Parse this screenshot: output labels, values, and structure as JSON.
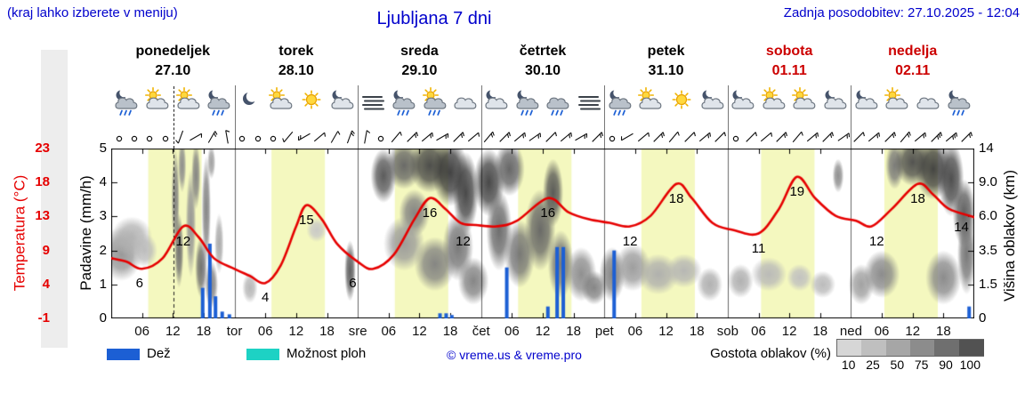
{
  "header": {
    "hint": "(kraj lahko izberete v meniju)",
    "title": "Ljubljana 7 dni",
    "updated": "Zadnja posodobitev: 27.10.2025 - 12:04"
  },
  "axes": {
    "temp_label": "Temperatura (°C)",
    "precip_label": "Padavine (mm/h)",
    "cloud_label": "Višina oblakov (km)",
    "temp_ticks": [
      "23",
      "18",
      "13",
      "9",
      "4",
      "-1"
    ],
    "precip_ticks": [
      "5",
      "4",
      "3",
      "2",
      "1",
      "0"
    ],
    "cloud_ticks": [
      "14",
      "9.0",
      "6.0",
      "3.5",
      "1.5",
      "0"
    ],
    "time_ticks": [
      "06",
      "12",
      "18"
    ],
    "day_boundary_labels": [
      "tor",
      "sre",
      "čet",
      "pet",
      "sob",
      "ned"
    ]
  },
  "days": [
    {
      "name": "ponedeljek",
      "date": "27.10",
      "weekend": false
    },
    {
      "name": "torek",
      "date": "28.10",
      "weekend": false
    },
    {
      "name": "sreda",
      "date": "29.10",
      "weekend": false
    },
    {
      "name": "četrtek",
      "date": "30.10",
      "weekend": false
    },
    {
      "name": "petek",
      "date": "31.10",
      "weekend": false
    },
    {
      "name": "sobota",
      "date": "01.11",
      "weekend": true
    },
    {
      "name": "nedelja",
      "date": "02.11",
      "weekend": true
    }
  ],
  "legend": {
    "rain": "Dež",
    "showers": "Možnost ploh",
    "copyright": "© vreme.us & vreme.pro",
    "cloud_density": "Gostota oblakov (%)",
    "density_steps": [
      "10",
      "25",
      "50",
      "75",
      "90",
      "100"
    ]
  },
  "colors": {
    "blue_text": "#0000cc",
    "weekend_red": "#cc0000",
    "rain": "#1c5fd4",
    "showers": "#1dd2c4",
    "temp_line": "#e60000",
    "day_band": "#f4f8bf",
    "density_scale": [
      "#d6d6d6",
      "#bfbfbf",
      "#a6a6a6",
      "#8c8c8c",
      "#6f6f6f",
      "#525252"
    ]
  },
  "chart_data": {
    "type": "line",
    "title": "Ljubljana 7 dni meteogram",
    "x_unit": "hours from 2025-10-27 00:00, 7 days total",
    "x_range": [
      0,
      168
    ],
    "precip_axis_range_mm_h": [
      0,
      5
    ],
    "temp_axis_ticks_c": [
      23,
      18,
      13,
      9,
      4,
      -1
    ],
    "cloud_height_ticks_km": [
      14,
      9.0,
      6.0,
      3.5,
      1.5,
      0
    ],
    "now_hour": 12.07,
    "day_bands_h": [
      [
        7.2,
        17.6
      ],
      [
        31.2,
        41.6
      ],
      [
        55.2,
        65.6
      ],
      [
        79.2,
        89.6
      ],
      [
        103.2,
        113.6
      ],
      [
        126.5,
        136.9
      ],
      [
        150.5,
        160.9
      ]
    ],
    "temperature_c": {
      "points": [
        [
          0,
          7.5
        ],
        [
          3,
          7
        ],
        [
          6,
          6
        ],
        [
          10,
          7.5
        ],
        [
          14,
          12
        ],
        [
          17,
          10.5
        ],
        [
          20,
          7.5
        ],
        [
          24,
          6
        ],
        [
          27,
          5
        ],
        [
          30,
          4
        ],
        [
          33,
          6.5
        ],
        [
          36,
          12
        ],
        [
          38,
          15
        ],
        [
          41,
          13
        ],
        [
          44,
          9.5
        ],
        [
          48,
          7
        ],
        [
          51,
          6
        ],
        [
          55,
          8
        ],
        [
          59,
          13
        ],
        [
          62,
          16
        ],
        [
          65,
          14.5
        ],
        [
          68,
          12.5
        ],
        [
          71,
          12.2
        ],
        [
          75,
          12
        ],
        [
          79,
          12.8
        ],
        [
          85,
          16
        ],
        [
          89,
          14
        ],
        [
          93,
          13
        ],
        [
          97,
          12.5
        ],
        [
          101,
          12
        ],
        [
          105,
          13.5
        ],
        [
          110,
          18
        ],
        [
          113,
          16
        ],
        [
          117,
          12.5
        ],
        [
          121,
          11.5
        ],
        [
          126,
          11
        ],
        [
          130,
          14.5
        ],
        [
          133.5,
          19
        ],
        [
          137,
          16
        ],
        [
          141,
          13.5
        ],
        [
          145,
          12.8
        ],
        [
          148,
          12
        ],
        [
          152,
          14.5
        ],
        [
          157,
          18
        ],
        [
          160,
          16.5
        ],
        [
          163,
          14.5
        ],
        [
          168,
          13.3
        ]
      ],
      "labels": [
        [
          5.5,
          6
        ],
        [
          14,
          12
        ],
        [
          30,
          4
        ],
        [
          38,
          15
        ],
        [
          47,
          6
        ],
        [
          62,
          16
        ],
        [
          68.5,
          12
        ],
        [
          85,
          16
        ],
        [
          101,
          12
        ],
        [
          110,
          18
        ],
        [
          126,
          11
        ],
        [
          133.5,
          19
        ],
        [
          149,
          12
        ],
        [
          157,
          18
        ],
        [
          165.5,
          14
        ]
      ]
    },
    "precip_mm_h": [
      [
        17.8,
        0.9
      ],
      [
        19.2,
        2.2
      ],
      [
        20.3,
        0.65
      ],
      [
        21.6,
        0.2
      ],
      [
        23,
        0.12
      ],
      [
        64,
        0.15
      ],
      [
        65.2,
        0.15
      ],
      [
        66.3,
        0.1
      ],
      [
        77,
        1.5
      ],
      [
        85,
        0.35
      ],
      [
        86.8,
        2.1
      ],
      [
        88,
        2.1
      ],
      [
        97.9,
        2.0
      ],
      [
        167,
        0.35
      ]
    ],
    "clouds": [
      [
        2,
        1.9,
        4,
        0.8,
        45
      ],
      [
        4,
        2.4,
        4,
        0.6,
        30
      ],
      [
        6.5,
        2.0,
        2.5,
        0.5,
        25
      ],
      [
        12.5,
        3.5,
        0.8,
        1.5,
        55
      ],
      [
        13.2,
        2.0,
        0.9,
        1.1,
        65
      ],
      [
        13.8,
        4.5,
        0.8,
        0.8,
        50
      ],
      [
        15.5,
        2.8,
        1.0,
        1.6,
        45
      ],
      [
        16.5,
        4.2,
        0.9,
        1.0,
        55
      ],
      [
        17.5,
        1.5,
        1.2,
        0.9,
        65
      ],
      [
        18.5,
        3.2,
        0.9,
        1.6,
        55
      ],
      [
        19.5,
        4.6,
        0.8,
        0.5,
        40
      ],
      [
        19.5,
        1.0,
        1.3,
        0.7,
        55
      ],
      [
        21,
        2.2,
        0.9,
        0.9,
        35
      ],
      [
        27,
        0.9,
        1.5,
        0.45,
        28
      ],
      [
        40,
        2.6,
        2,
        0.35,
        18
      ],
      [
        46.5,
        1.4,
        1.1,
        0.9,
        75
      ],
      [
        53,
        4.2,
        2.5,
        0.8,
        78
      ],
      [
        57,
        4.5,
        3.5,
        0.7,
        70
      ],
      [
        62,
        4.5,
        4,
        0.8,
        85
      ],
      [
        66,
        4.3,
        3.5,
        1.0,
        92
      ],
      [
        69,
        3.7,
        2.5,
        1.2,
        88
      ],
      [
        59,
        3.1,
        3,
        0.7,
        55
      ],
      [
        57,
        2.2,
        4,
        0.8,
        42
      ],
      [
        63,
        1.6,
        4,
        0.8,
        55
      ],
      [
        67.5,
        2.1,
        3,
        1.0,
        62
      ],
      [
        70.5,
        1.1,
        3,
        0.7,
        55
      ],
      [
        73.5,
        4.0,
        3,
        1.0,
        88
      ],
      [
        77.5,
        4.4,
        3,
        0.8,
        72
      ],
      [
        75.5,
        2.6,
        2.5,
        1.2,
        68
      ],
      [
        79.5,
        1.9,
        3,
        1.0,
        62
      ],
      [
        83.5,
        2.6,
        3,
        1.2,
        70
      ],
      [
        86,
        3.7,
        2,
        1.0,
        78
      ],
      [
        87.5,
        1.6,
        2.5,
        1.0,
        60
      ],
      [
        91.5,
        1.3,
        3,
        0.8,
        50
      ],
      [
        94,
        0.9,
        2.5,
        0.5,
        55
      ],
      [
        97.5,
        1.3,
        2.5,
        0.8,
        55
      ],
      [
        101.5,
        1.5,
        3.5,
        0.7,
        42
      ],
      [
        106.5,
        1.3,
        4,
        0.6,
        32
      ],
      [
        111.5,
        1.4,
        3.5,
        0.5,
        28
      ],
      [
        116.5,
        1.0,
        2.5,
        0.5,
        32
      ],
      [
        122.5,
        1.1,
        2.5,
        0.5,
        32
      ],
      [
        128,
        1.3,
        3.5,
        0.5,
        26
      ],
      [
        134,
        1.2,
        2.5,
        0.4,
        22
      ],
      [
        138.5,
        1.0,
        2.5,
        0.4,
        26
      ],
      [
        141.5,
        4.2,
        1.1,
        0.5,
        50
      ],
      [
        146,
        1.0,
        2.5,
        0.6,
        40
      ],
      [
        150,
        1.3,
        3.5,
        0.7,
        52
      ],
      [
        152.5,
        4.5,
        1.8,
        0.7,
        60
      ],
      [
        156,
        4.6,
        3.5,
        0.7,
        82
      ],
      [
        160,
        4.4,
        3.5,
        0.9,
        90
      ],
      [
        163.5,
        4.1,
        2.5,
        1.1,
        85
      ],
      [
        166,
        3.1,
        2.2,
        1.0,
        75
      ],
      [
        162,
        1.2,
        3.5,
        0.8,
        52
      ],
      [
        166.5,
        1.9,
        1.8,
        1.2,
        62
      ]
    ],
    "icons": [
      "moon-cloud-rain",
      "sun-cloud",
      "sun-cloud",
      "moon-cloud-rain",
      "moon",
      "sun-cloud",
      "sun",
      "moon-cloud",
      "fog",
      "moon-cloud-rain",
      "sun-cloud-rain",
      "cloud",
      "moon-cloud",
      "moon-cloud-rain",
      "cloud-rain",
      "fog",
      "moon-cloud-rain",
      "sun-cloud",
      "sun",
      "moon-cloud",
      "moon-cloud",
      "sun-cloud",
      "sun-cloud",
      "moon-cloud",
      "moon-cloud",
      "sun-cloud",
      "cloud",
      "moon-cloud-rain"
    ],
    "wind": [
      [],
      [],
      [],
      [],
      [
        200,
        1
      ],
      [
        60,
        1
      ],
      [
        30,
        2
      ],
      [
        350,
        1
      ],
      [],
      [],
      [],
      [
        220,
        1
      ],
      [
        240,
        2
      ],
      [
        50,
        1
      ],
      [
        30,
        1
      ],
      [
        20,
        2
      ],
      [
        10,
        1
      ],
      [],
      [
        40,
        1
      ],
      [
        45,
        2
      ],
      [
        50,
        2
      ],
      [
        60,
        2
      ],
      [
        45,
        2
      ],
      [
        50,
        1
      ],
      [
        40,
        2
      ],
      [
        45,
        2
      ],
      [
        50,
        2
      ],
      [
        55,
        2
      ],
      [
        45,
        1
      ],
      [
        50,
        2
      ],
      [
        60,
        2
      ],
      [
        45,
        2
      ],
      [],
      [
        240,
        1
      ],
      [
        50,
        1
      ],
      [
        45,
        2
      ],
      [
        40,
        1
      ],
      [
        45,
        1
      ],
      [
        50,
        2
      ],
      [
        45,
        1
      ],
      [],
      [
        45,
        1
      ],
      [
        50,
        1
      ],
      [
        45,
        2
      ],
      [
        40,
        1
      ],
      [
        50,
        2
      ],
      [
        45,
        2
      ],
      [
        55,
        2
      ],
      [
        45,
        1
      ],
      [
        50,
        2
      ],
      [
        45,
        2
      ],
      [
        40,
        2
      ],
      [
        50,
        2
      ],
      [
        45,
        3
      ],
      [
        50,
        3
      ],
      [
        45,
        2
      ]
    ]
  }
}
